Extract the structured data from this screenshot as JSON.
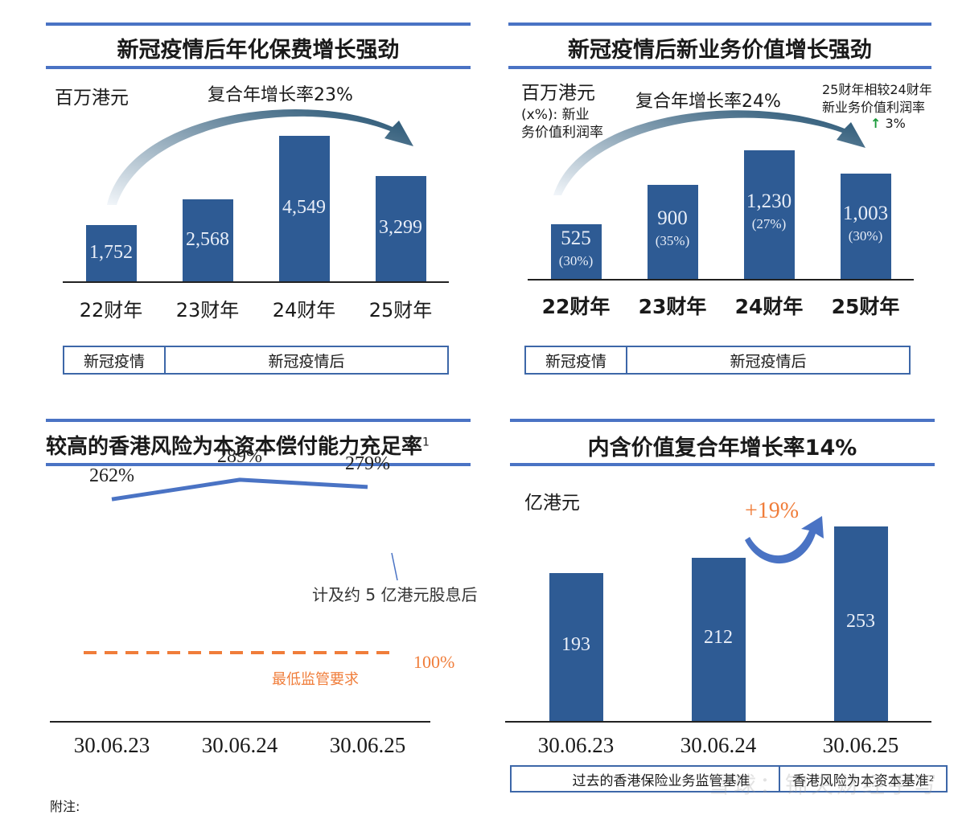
{
  "panel_tl": {
    "title": "新冠疫情后年化保费增长强劲",
    "unit": "百万港元",
    "cagr_label": "复合年增长率23%",
    "period_pre": "新冠疫情",
    "period_post": "新冠疫情后"
  },
  "panel_tr": {
    "title": "新冠疫情后新业务价值增长强劲",
    "unit": "百万港元",
    "unit_note_line1": "(x%): 新业",
    "unit_note_line2": "务价值利润率",
    "cagr_label": "复合年增长率24%",
    "margin_note_line1": "25财年相较24财年",
    "margin_note_line2": "新业务价值利润率",
    "margin_change": "3%",
    "margin_arrow": "up-arrow-icon",
    "period_pre": "新冠疫情",
    "period_post": "新冠疫情后"
  },
  "panel_bl": {
    "title": "较高的香港风险为本资本偿付能力充足率",
    "title_sup": "1",
    "annotation": "计及约 5 亿港元股息后",
    "threshold_value": "100%",
    "threshold_label": "最低监管要求"
  },
  "panel_br": {
    "title": "内含价值复合年增长率14%",
    "unit": "亿港元",
    "growth_label": "+19%",
    "footer_left": "过去的香港保险业务监管基准",
    "footer_right": "香港风险为本资本基准",
    "footer_right_sup": "2"
  },
  "footnote": "附注:",
  "watermark": "雪球：锦央财经手写",
  "colors": {
    "bar": "#2e5b94",
    "rule": "#4a73c4",
    "line": "#4a73c4",
    "threshold": "#f07d3a",
    "arrow_dark": "#1f4e6e",
    "growth": "#f07d3a",
    "up_arrow": "#1a9a3a"
  },
  "chart_data": [
    {
      "type": "bar",
      "title": "新冠疫情后年化保费增长强劲",
      "ylabel": "百万港元",
      "categories": [
        "22财年",
        "23财年",
        "24财年",
        "25财年"
      ],
      "values": [
        1752,
        2568,
        4549,
        3299
      ],
      "value_labels": [
        "1,752",
        "2,568",
        "4,549",
        "3,299"
      ],
      "annotation": "复合年增长率23%",
      "ylim": [
        0,
        4900
      ]
    },
    {
      "type": "bar",
      "title": "新冠疫情后新业务价值增长强劲",
      "ylabel": "百万港元",
      "categories": [
        "22财年",
        "23财年",
        "24财年",
        "25财年"
      ],
      "values": [
        525,
        900,
        1230,
        1003
      ],
      "value_labels": [
        "525",
        "900",
        "1,230",
        "1,003"
      ],
      "margins": [
        "(30%)",
        "(35%)",
        "(27%)",
        "(30%)"
      ],
      "annotation": "复合年增长率24%",
      "ylim": [
        0,
        1350
      ]
    },
    {
      "type": "line",
      "title": "较高的香港风险为本资本偿付能力充足率",
      "categories": [
        "30.06.23",
        "30.06.24",
        "30.06.25"
      ],
      "values": [
        262,
        289,
        279
      ],
      "value_labels": [
        "262%",
        "289%",
        "279%"
      ],
      "threshold": 100,
      "threshold_label": "最低监管要求",
      "ylim": [
        0,
        330
      ]
    },
    {
      "type": "bar",
      "title": "内含价值复合年增长率14%",
      "ylabel": "亿港元",
      "categories": [
        "30.06.23",
        "30.06.24",
        "30.06.25"
      ],
      "values": [
        193,
        212,
        253
      ],
      "value_labels": [
        "193",
        "212",
        "253"
      ],
      "annotation": "+19%",
      "ylim": [
        0,
        270
      ]
    }
  ]
}
